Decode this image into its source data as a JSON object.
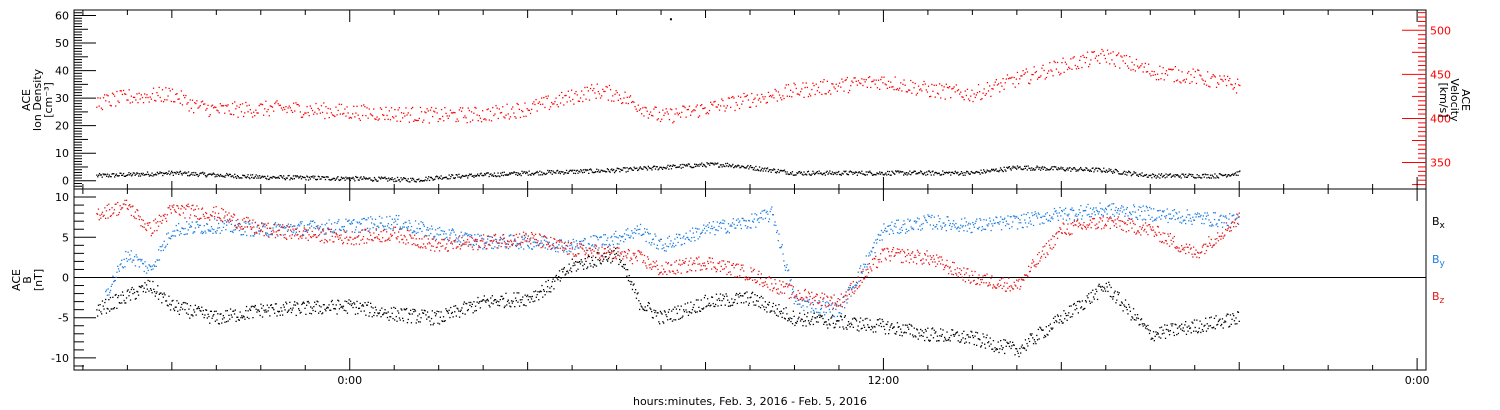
{
  "chart_data": [
    {
      "type": "scatter",
      "panel": "top",
      "ylabel": [
        "ACE",
        "Ion Density",
        "[cm⁻³]"
      ],
      "ylabel_right": [
        "ACE",
        "Velocity",
        "[km/s]"
      ],
      "ylim": [
        -3,
        62
      ],
      "ylim_right": [
        320,
        523
      ],
      "yticks": [
        0,
        10,
        20,
        30,
        40,
        50,
        60
      ],
      "yticks_right": [
        350,
        400,
        450,
        500
      ],
      "series": [
        {
          "axis": "left",
          "color": "#000000",
          "points": [
            [
              -5.7,
              2
            ],
            [
              -4,
              3
            ],
            [
              -2,
              1.5
            ],
            [
              0,
              1
            ],
            [
              1.5,
              0.5
            ],
            [
              2,
              1.5
            ],
            [
              4,
              3
            ],
            [
              6,
              4
            ],
            [
              7,
              5
            ],
            [
              8,
              6
            ],
            [
              8.5,
              6
            ],
            [
              9,
              5
            ],
            [
              10,
              3
            ],
            [
              12,
              3
            ],
            [
              14,
              3
            ],
            [
              15,
              5
            ],
            [
              17,
              4
            ],
            [
              18,
              2
            ],
            [
              19.5,
              2
            ],
            [
              20,
              3
            ]
          ]
        },
        {
          "axis": "right",
          "color": "#ff0000",
          "points": [
            [
              -5.7,
              418
            ],
            [
              -5,
              425
            ],
            [
              -4,
              428
            ],
            [
              -3.5,
              415
            ],
            [
              -3,
              410
            ],
            [
              -1.5,
              412
            ],
            [
              0,
              408
            ],
            [
              1,
              406
            ],
            [
              2,
              404
            ],
            [
              3,
              405
            ],
            [
              4,
              412
            ],
            [
              5,
              425
            ],
            [
              5.5,
              432
            ],
            [
              6,
              428
            ],
            [
              7,
              402
            ],
            [
              8,
              412
            ],
            [
              9,
              422
            ],
            [
              10,
              432
            ],
            [
              11,
              438
            ],
            [
              12,
              443
            ],
            [
              13,
              433
            ],
            [
              14,
              428
            ],
            [
              15,
              445
            ],
            [
              16,
              460
            ],
            [
              17,
              472
            ],
            [
              18,
              454
            ],
            [
              19,
              448
            ],
            [
              20,
              437
            ]
          ]
        }
      ],
      "isolated_point": [
        7.2,
        59
      ]
    },
    {
      "type": "scatter",
      "panel": "bottom",
      "ylabel": [
        "ACE",
        "B",
        "[nT]"
      ],
      "ylim": [
        -11.5,
        11
      ],
      "yticks": [
        -10,
        -5,
        0,
        5,
        10
      ],
      "legend": [
        "Bx",
        "By",
        "Bz"
      ],
      "series": [
        {
          "name": "Bx",
          "color": "#000000",
          "points": [
            [
              -5.7,
              -4
            ],
            [
              -5.3,
              -3
            ],
            [
              -4.5,
              -1
            ],
            [
              -4,
              -3.5
            ],
            [
              -3,
              -5
            ],
            [
              -2,
              -4
            ],
            [
              0,
              -3.5
            ],
            [
              1,
              -4.5
            ],
            [
              2,
              -5
            ],
            [
              3,
              -3
            ],
            [
              4,
              -2.5
            ],
            [
              4.5,
              -1
            ],
            [
              5,
              1.5
            ],
            [
              6,
              3
            ],
            [
              6.5,
              -3
            ],
            [
              7,
              -5
            ],
            [
              8,
              -3
            ],
            [
              9,
              -2.5
            ],
            [
              10,
              -5
            ],
            [
              12,
              -6
            ],
            [
              13,
              -7
            ],
            [
              14,
              -7.5
            ],
            [
              15,
              -9
            ],
            [
              16,
              -5
            ],
            [
              17,
              -1
            ],
            [
              18,
              -7
            ],
            [
              19,
              -6
            ],
            [
              20,
              -5
            ]
          ]
        },
        {
          "name": "By",
          "color": "#1f7fdf",
          "points": [
            [
              -5.5,
              -2
            ],
            [
              -5,
              3
            ],
            [
              -4.5,
              1
            ],
            [
              -4,
              6
            ],
            [
              -3,
              6.5
            ],
            [
              -2,
              6
            ],
            [
              0,
              6.5
            ],
            [
              1,
              7
            ],
            [
              2,
              5.5
            ],
            [
              3,
              4.5
            ],
            [
              4,
              4.5
            ],
            [
              5,
              4
            ],
            [
              6,
              5
            ],
            [
              6.5,
              6
            ],
            [
              7,
              4
            ],
            [
              8,
              6
            ],
            [
              9,
              7
            ],
            [
              9.5,
              8
            ],
            [
              10,
              -3
            ],
            [
              11,
              -4
            ],
            [
              12,
              6
            ],
            [
              13,
              7
            ],
            [
              14,
              6.5
            ],
            [
              15,
              7
            ],
            [
              16,
              8
            ],
            [
              17,
              8.5
            ],
            [
              18,
              8
            ],
            [
              19,
              7.5
            ],
            [
              20,
              7
            ]
          ]
        },
        {
          "name": "Bz",
          "color": "#e41a1c",
          "points": [
            [
              -5.7,
              8
            ],
            [
              -5,
              9
            ],
            [
              -4.5,
              6
            ],
            [
              -4,
              8.5
            ],
            [
              -3,
              8
            ],
            [
              -2,
              6
            ],
            [
              0,
              5
            ],
            [
              1,
              5.5
            ],
            [
              2,
              4
            ],
            [
              3,
              4.5
            ],
            [
              4,
              5
            ],
            [
              5,
              3.5
            ],
            [
              6,
              3
            ],
            [
              6.5,
              2.5
            ],
            [
              7,
              1
            ],
            [
              8,
              2
            ],
            [
              9,
              0.5
            ],
            [
              10,
              -2
            ],
            [
              11,
              -3
            ],
            [
              12,
              3
            ],
            [
              13,
              2.5
            ],
            [
              14,
              0
            ],
            [
              15,
              -1
            ],
            [
              16,
              6
            ],
            [
              17,
              7
            ],
            [
              18,
              6
            ],
            [
              19,
              3
            ],
            [
              20,
              7.5
            ]
          ]
        }
      ]
    }
  ],
  "x_axis": {
    "label": "hours:minutes, Feb.  3, 2016 - Feb.  5, 2016",
    "range_hours": [
      -6.2,
      24.2
    ],
    "major_ticks": [
      {
        "h": 0,
        "label": "0:00"
      },
      {
        "h": 12,
        "label": "12:00"
      },
      {
        "h": 24,
        "label": "0:00"
      }
    ]
  }
}
